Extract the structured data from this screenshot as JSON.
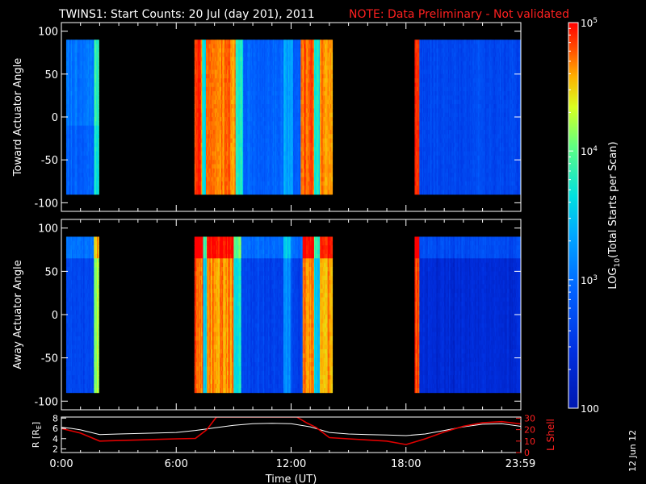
{
  "header": {
    "title": "TWINS1: Start Counts: 20 Jul (day 201), 2011",
    "note": "NOTE: Data Preliminary - Not validated"
  },
  "colors": {
    "background": "#000000",
    "note": "#ff2020",
    "r_line": "#ffffff",
    "lshell_line": "#e00000"
  },
  "chart_data": [
    {
      "type": "heatmap",
      "name": "toward",
      "ylabel": "Toward Actuator Angle",
      "ylim": [
        -110,
        110
      ],
      "y_range_data": [
        -90,
        90
      ],
      "yticks": [
        "100",
        "50",
        "0",
        "-50",
        "-100"
      ],
      "ytick_values": [
        100,
        50,
        0,
        -50,
        -100
      ],
      "xlim_hours": [
        0,
        24
      ],
      "colorscale": "log",
      "blocks": [
        {
          "start": 0.25,
          "end": 1.95,
          "spikes": [
            {
              "start": 1.7,
              "end": 1.95,
              "level": 0.62
            }
          ],
          "base": 0.35
        },
        {
          "start": 6.95,
          "end": 14.15,
          "spikes": [
            {
              "start": 6.95,
              "end": 7.35,
              "level": 0.95
            },
            {
              "start": 7.35,
              "end": 7.55,
              "level": 0.55
            },
            {
              "start": 7.55,
              "end": 9.1,
              "level": 0.9
            },
            {
              "start": 9.1,
              "end": 9.5,
              "level": 0.6
            },
            {
              "start": 11.6,
              "end": 12.1,
              "level": 0.45
            },
            {
              "start": 12.5,
              "end": 13.2,
              "level": 0.92
            },
            {
              "start": 13.2,
              "end": 13.5,
              "level": 0.55
            },
            {
              "start": 13.5,
              "end": 14.15,
              "level": 0.88
            }
          ],
          "base": 0.3
        },
        {
          "start": 18.45,
          "end": 24.0,
          "spikes": [
            {
              "start": 18.45,
              "end": 18.7,
              "level": 0.95
            }
          ],
          "base": 0.22
        }
      ]
    },
    {
      "type": "heatmap",
      "name": "away",
      "ylabel": "Away Actuator Angle",
      "ylim": [
        -110,
        110
      ],
      "y_range_data": [
        -90,
        90
      ],
      "yticks": [
        "100",
        "50",
        "0",
        "-50",
        "-100"
      ],
      "ytick_values": [
        100,
        50,
        0,
        -50,
        -100
      ],
      "xlim_hours": [
        0,
        24
      ],
      "colorscale": "log",
      "blocks": [
        {
          "start": 0.25,
          "end": 1.95,
          "spikes": [
            {
              "start": 1.7,
              "end": 1.95,
              "level": 0.72
            }
          ],
          "base": 0.22
        },
        {
          "start": 6.95,
          "end": 14.15,
          "spikes": [
            {
              "start": 6.95,
              "end": 7.4,
              "level": 0.92
            },
            {
              "start": 7.4,
              "end": 7.6,
              "level": 0.55
            },
            {
              "start": 7.6,
              "end": 9.0,
              "level": 0.88
            },
            {
              "start": 9.0,
              "end": 9.4,
              "level": 0.55
            },
            {
              "start": 11.6,
              "end": 12.0,
              "level": 0.4
            },
            {
              "start": 12.6,
              "end": 13.2,
              "level": 0.9
            },
            {
              "start": 13.2,
              "end": 13.5,
              "level": 0.5
            },
            {
              "start": 13.5,
              "end": 14.15,
              "level": 0.85
            }
          ],
          "base": 0.2
        },
        {
          "start": 18.45,
          "end": 24.0,
          "spikes": [
            {
              "start": 18.45,
              "end": 18.7,
              "level": 0.95
            }
          ],
          "base": 0.12
        }
      ]
    },
    {
      "type": "line",
      "name": "orbit",
      "ylabel_left": "R [R",
      "ylabel_left_sub": "E",
      "ylabel_left_end": "]",
      "ylabel_right": "L Shell",
      "yticks_left": [
        "8",
        "6",
        "4",
        "2"
      ],
      "ytick_values_left": [
        8,
        6,
        4,
        2
      ],
      "ylim_left": [
        1.3,
        8.2
      ],
      "yticks_right": [
        "30",
        "20",
        "10",
        "0"
      ],
      "ytick_values_right": [
        30,
        20,
        10,
        0
      ],
      "ylim_right": [
        0,
        31
      ],
      "xlabel": "Time (UT)",
      "xticks": [
        "0:00",
        "6:00",
        "12:00",
        "18:00",
        "23:59"
      ],
      "xtick_values": [
        0,
        6,
        12,
        18,
        23.98
      ],
      "series": [
        {
          "axis": "left",
          "x": [
            0,
            0.5,
            1,
            2,
            3,
            4,
            5,
            6,
            7,
            8,
            9,
            10,
            11,
            12,
            13,
            14,
            15,
            16,
            17,
            18,
            19,
            20,
            21,
            22,
            23,
            24
          ],
          "y": [
            6.2,
            6.0,
            5.7,
            4.8,
            4.9,
            5.0,
            5.1,
            5.2,
            5.6,
            6.1,
            6.6,
            6.9,
            7.0,
            6.9,
            6.3,
            5.2,
            4.9,
            4.8,
            4.7,
            4.6,
            4.9,
            5.6,
            6.3,
            6.8,
            6.9,
            6.4
          ]
        },
        {
          "axis": "right",
          "x": [
            0,
            1,
            2,
            3,
            4,
            5,
            6,
            7,
            7.6,
            8.1,
            12.3,
            12.8,
            13.3,
            14,
            15,
            16,
            17,
            18,
            19,
            20,
            21,
            22,
            23,
            24
          ],
          "y": [
            21,
            17,
            10,
            10.5,
            11,
            11.5,
            12,
            12.3,
            20,
            31,
            31,
            26,
            22,
            13,
            12,
            11,
            10,
            7,
            12,
            18,
            23,
            26,
            27,
            25
          ]
        }
      ]
    }
  ],
  "colorbar": {
    "label_prefix": "LOG",
    "label_sub": "10",
    "label_suffix": "(Total Starts per Scan)",
    "ticks": [
      {
        "base": "10",
        "exp": "5",
        "level": 1.0
      },
      {
        "base": "10",
        "exp": "4",
        "level": 0.667
      },
      {
        "base": "10",
        "exp": "3",
        "level": 0.333
      },
      {
        "base": "100",
        "exp": "",
        "level": 0.0
      }
    ]
  },
  "footer": {
    "date_stamp": "12 Jun 12"
  }
}
